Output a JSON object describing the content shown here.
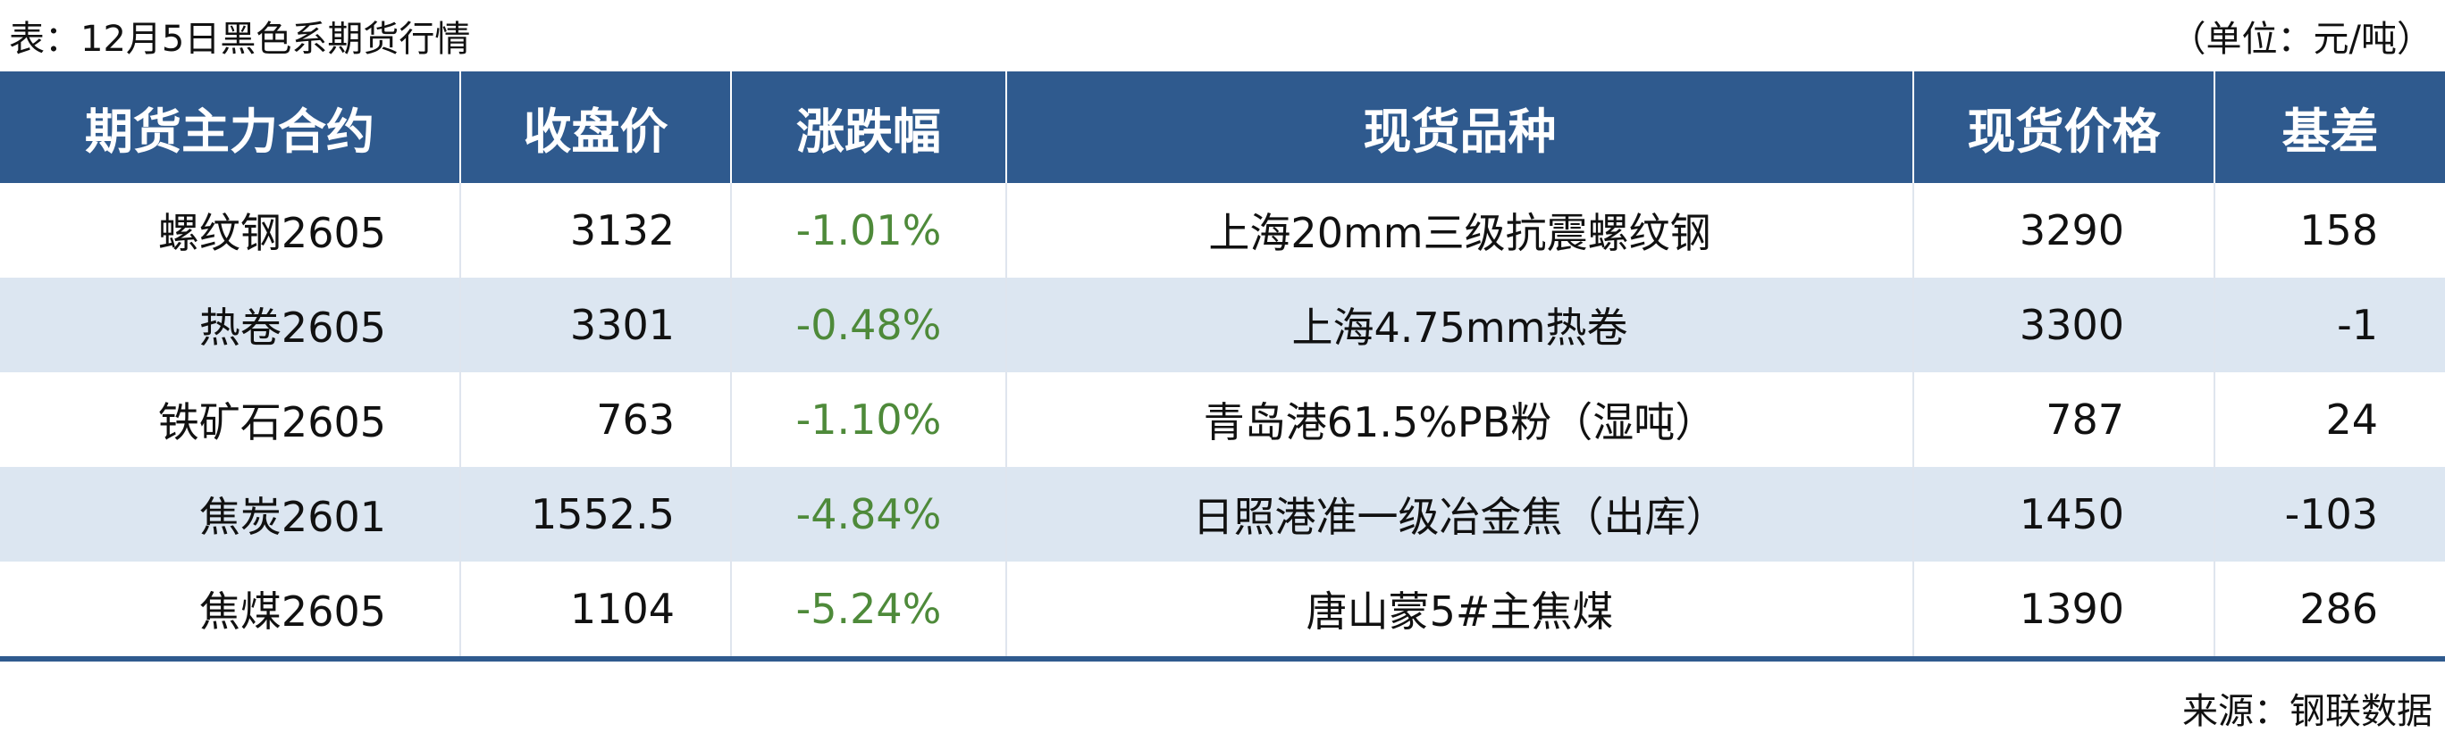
{
  "header": {
    "title": "表：12月5日黑色系期货行情",
    "unit": "（单位：元/吨）"
  },
  "table": {
    "columns": [
      "期货主力合约",
      "收盘价",
      "涨跌幅",
      "现货品种",
      "现货价格",
      "基差"
    ],
    "rows": [
      [
        "螺纹钢2605",
        "3132",
        "-1.01%",
        "上海20mm三级抗震螺纹钢",
        "3290",
        "158"
      ],
      [
        "热卷2605",
        "3301",
        "-0.48%",
        "上海4.75mm热卷",
        "3300",
        "-1"
      ],
      [
        "铁矿石2605",
        "763",
        "-1.10%",
        "青岛港61.5%PB粉（湿吨）",
        "787",
        "24"
      ],
      [
        "焦炭2601",
        "1552.5",
        "-4.84%",
        "日照港准一级冶金焦（出库）",
        "1450",
        "-103"
      ],
      [
        "焦煤2605",
        "1104",
        "-5.24%",
        "唐山蒙5#主焦煤",
        "1390",
        "286"
      ]
    ]
  },
  "footer": {
    "source": "来源：钢联数据"
  }
}
